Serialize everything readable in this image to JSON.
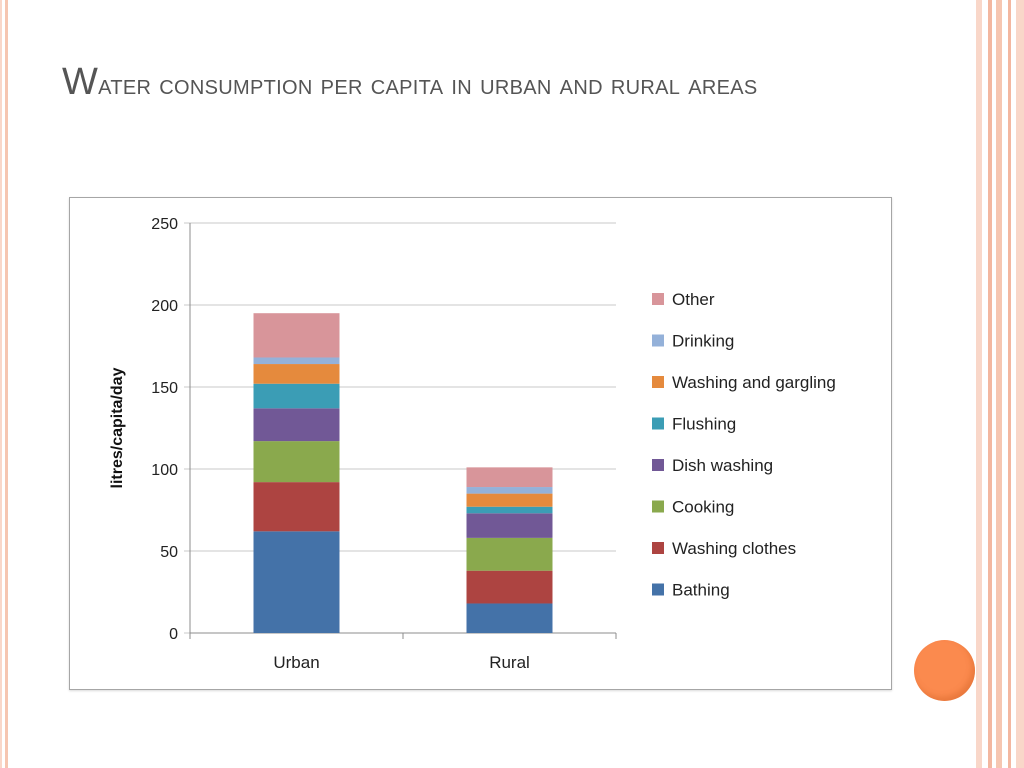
{
  "slide": {
    "title_first_letter": "W",
    "title_rest": "ater consumption per capita in urban and rural areas"
  },
  "colors": {
    "border_lines": [
      "#f9d7c9",
      "#f3b7a0",
      "#f6c6b1",
      "#f3b7a0"
    ],
    "accent_dot": "#fb8a4e"
  },
  "chart_data": {
    "type": "bar",
    "stacked": true,
    "categories": [
      "Urban",
      "Rural"
    ],
    "ylabel": "litres/capita/day",
    "xlabel": "",
    "ylim": [
      0,
      250
    ],
    "yticks": [
      0,
      50,
      100,
      150,
      200,
      250
    ],
    "grid": true,
    "legend_position": "right",
    "series": [
      {
        "name": "Bathing",
        "color": "#4472a8",
        "values": [
          62,
          18
        ]
      },
      {
        "name": "Washing clothes",
        "color": "#ad4441",
        "values": [
          30,
          20
        ]
      },
      {
        "name": "Cooking",
        "color": "#8aa94d",
        "values": [
          25,
          20
        ]
      },
      {
        "name": "Dish washing",
        "color": "#715896",
        "values": [
          20,
          15
        ]
      },
      {
        "name": "Flushing",
        "color": "#3b9db5",
        "values": [
          15,
          4
        ]
      },
      {
        "name": "Washing and gargling",
        "color": "#e58a3d",
        "values": [
          12,
          8
        ]
      },
      {
        "name": "Drinking",
        "color": "#94b1d9",
        "values": [
          4,
          4
        ]
      },
      {
        "name": "Other",
        "color": "#d8959a",
        "values": [
          27,
          12
        ]
      }
    ]
  }
}
